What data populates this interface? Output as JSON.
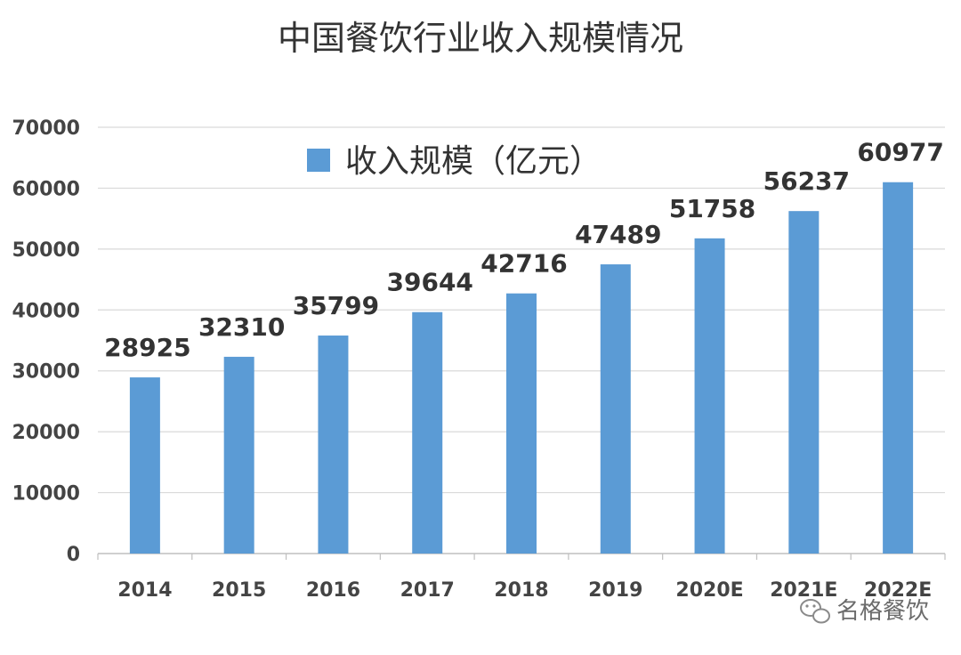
{
  "chart_data": {
    "type": "bar",
    "title": "中国餐饮行业收入规模情况",
    "categories": [
      "2014",
      "2015",
      "2016",
      "2017",
      "2018",
      "2019",
      "2020E",
      "2021E",
      "2022E"
    ],
    "series": [
      {
        "name": "收入规模（亿元）",
        "values": [
          28925,
          32310,
          35799,
          39644,
          42716,
          47489,
          51758,
          56237,
          60977
        ]
      }
    ],
    "data_labels": [
      "28925",
      "32310",
      "35799",
      "39644",
      "42716",
      "47489",
      "51758",
      "56237",
      "60977"
    ],
    "yticks": [
      "0",
      "10000",
      "20000",
      "30000",
      "40000",
      "50000",
      "60000",
      "70000"
    ],
    "ylim": [
      0,
      70000
    ],
    "grid": true,
    "legend_position": "top-center",
    "xlabel": "",
    "ylabel": "",
    "colors": {
      "bar": "#5b9bd5",
      "grid": "#d9d9d9",
      "axis": "#bfbfbf"
    }
  },
  "watermark": {
    "text": "名格餐饮",
    "icon": "wechat-icon"
  }
}
